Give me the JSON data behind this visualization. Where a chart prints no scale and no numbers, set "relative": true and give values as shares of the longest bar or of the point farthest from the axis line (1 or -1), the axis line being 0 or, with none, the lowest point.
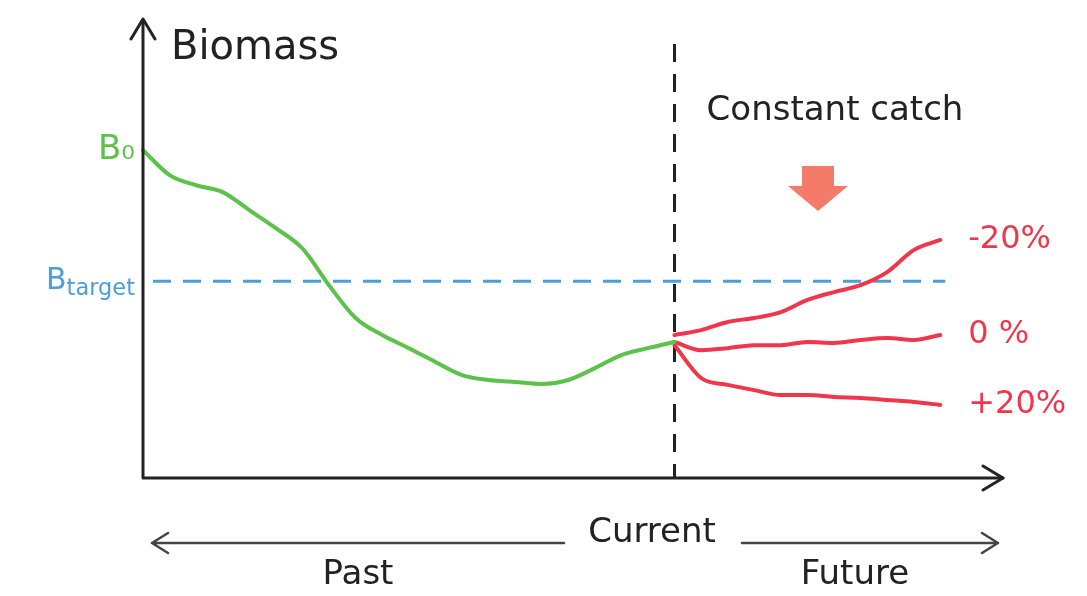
{
  "chart_data": {
    "type": "line",
    "relative": true,
    "ylabel": "Biomass",
    "legend": false,
    "marker": "none",
    "line_style": "solid",
    "categories": [
      null,
      null,
      null,
      null,
      null,
      null,
      null,
      null,
      null,
      null,
      null,
      null,
      null,
      null,
      null,
      null,
      null,
      null,
      null,
      null,
      null,
      null,
      null,
      null,
      null,
      null,
      null,
      null,
      null,
      null,
      null,
      null,
      null,
      null
    ],
    "series": [
      {
        "color": "#5cc24a",
        "values": [
          1.0,
          0.924,
          0.893,
          0.872,
          0.817,
          0.762,
          0.7,
          0.588,
          0.488,
          0.436,
          0.396,
          0.354,
          0.314,
          0.299,
          0.293,
          0.287,
          0.299,
          0.335,
          0.375,
          0.396,
          0.415,
          null,
          null,
          null,
          null,
          null,
          null,
          null,
          null,
          null,
          null,
          null,
          null,
          null
        ]
      },
      {
        "name": "-20%",
        "color": "#f0364a",
        "values": [
          null,
          null,
          null,
          null,
          null,
          null,
          null,
          null,
          null,
          null,
          null,
          null,
          null,
          null,
          null,
          null,
          null,
          null,
          null,
          null,
          0.436,
          0.451,
          0.476,
          0.488,
          0.506,
          0.543,
          0.567,
          0.588,
          0.628,
          0.695,
          0.726,
          null,
          null,
          null
        ]
      },
      {
        "name": "0 %",
        "color": "#f0364a",
        "values": [
          null,
          null,
          null,
          null,
          null,
          null,
          null,
          null,
          null,
          null,
          null,
          null,
          null,
          null,
          null,
          null,
          null,
          null,
          null,
          null,
          0.415,
          0.39,
          0.396,
          0.405,
          0.405,
          0.415,
          0.412,
          0.421,
          0.427,
          0.421,
          0.436,
          null,
          null,
          null
        ]
      },
      {
        "name": "+20%",
        "color": "#f0364a",
        "values": [
          null,
          null,
          null,
          null,
          null,
          null,
          null,
          null,
          null,
          null,
          null,
          null,
          null,
          null,
          null,
          null,
          null,
          null,
          null,
          null,
          0.405,
          0.305,
          0.284,
          0.268,
          0.253,
          0.253,
          0.247,
          0.244,
          0.238,
          0.232,
          0.223,
          null,
          null,
          null
        ]
      }
    ],
    "ref_lines": [
      {
        "axis": "y",
        "value": 0.6,
        "label": "B$_{target}$",
        "color": "#4a9fd8",
        "line_style": "dashed"
      }
    ],
    "annotations": [
      "B₀",
      "Constant catch",
      "Current",
      "Past",
      "Future"
    ]
  }
}
